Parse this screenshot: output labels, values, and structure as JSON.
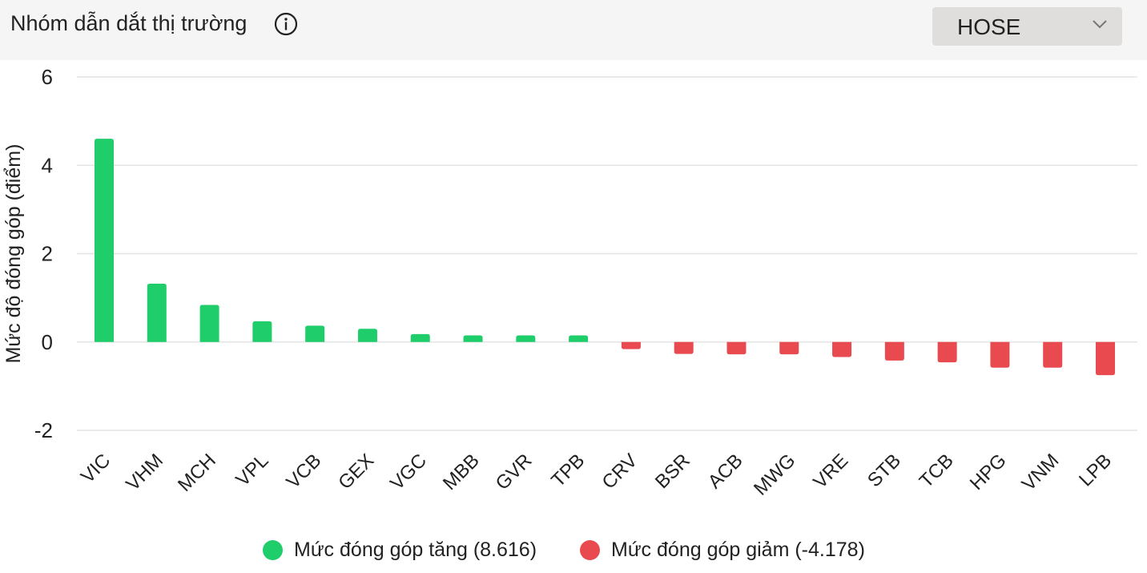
{
  "header": {
    "title": "Nhóm dẫn dắt thị trường",
    "icon": "info-icon",
    "exchange_select": {
      "value": "HOSE",
      "icon": "chevron-down-icon"
    }
  },
  "colors": {
    "positive": "#1fce6a",
    "negative": "#e94a4f",
    "grid": "#e4e4e4",
    "text": "#222222"
  },
  "legend": {
    "positive_label": "Mức đóng góp tăng (8.616)",
    "negative_label": "Mức đóng góp giảm (-4.178)"
  },
  "chart_data": {
    "type": "bar",
    "title": "",
    "xlabel": "",
    "ylabel": "Mức độ đóng góp (điểm)",
    "ylim": [
      -2,
      6
    ],
    "yticks": [
      -2,
      0,
      2,
      4,
      6
    ],
    "grid": true,
    "legend_position": "bottom",
    "categories": [
      "VIC",
      "VHM",
      "MCH",
      "VPL",
      "VCB",
      "GEX",
      "VGC",
      "MBB",
      "GVR",
      "TPB",
      "CRV",
      "BSR",
      "ACB",
      "MWG",
      "VRE",
      "STB",
      "TCB",
      "HPG",
      "VNM",
      "LPB"
    ],
    "values": [
      4.6,
      1.32,
      0.84,
      0.47,
      0.37,
      0.3,
      0.18,
      0.15,
      0.15,
      0.15,
      -0.16,
      -0.27,
      -0.28,
      -0.28,
      -0.34,
      -0.42,
      -0.46,
      -0.58,
      -0.58,
      -0.75
    ]
  }
}
